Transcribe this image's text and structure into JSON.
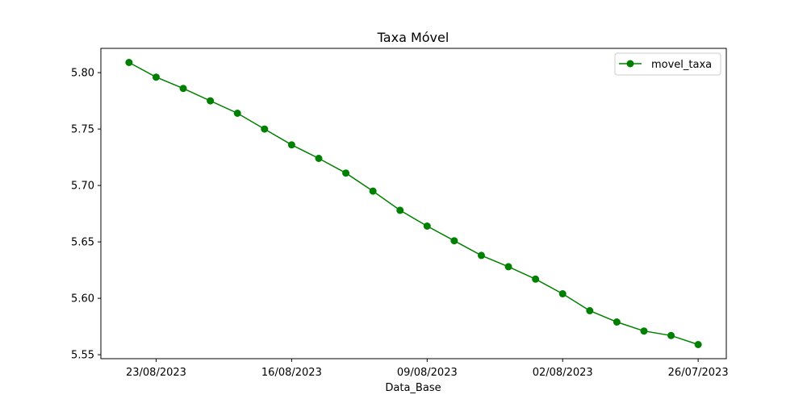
{
  "chart_data": {
    "type": "line",
    "title": "Taxa Móvel",
    "xlabel": "Data_Base",
    "ylabel": "",
    "x": [
      "24/08/2023",
      "23/08/2023",
      "22/08/2023",
      "21/08/2023",
      "18/08/2023",
      "17/08/2023",
      "16/08/2023",
      "15/08/2023",
      "14/08/2023",
      "11/08/2023",
      "10/08/2023",
      "09/08/2023",
      "08/08/2023",
      "07/08/2023",
      "04/08/2023",
      "03/08/2023",
      "02/08/2023",
      "01/08/2023",
      "31/07/2023",
      "28/07/2023",
      "27/07/2023",
      "26/07/2023"
    ],
    "x_axis_order": "descending",
    "xticks": [
      "23/08/2023",
      "16/08/2023",
      "09/08/2023",
      "02/08/2023",
      "26/07/2023"
    ],
    "series": [
      {
        "name": "movel_taxa",
        "color": "#008000",
        "marker": "circle",
        "values": [
          5.809,
          5.796,
          5.786,
          5.775,
          5.764,
          5.75,
          5.736,
          5.724,
          5.711,
          5.695,
          5.678,
          5.664,
          5.651,
          5.638,
          5.628,
          5.617,
          5.604,
          5.589,
          5.579,
          5.571,
          5.567,
          5.559
        ]
      }
    ],
    "yticks": [
      5.55,
      5.6,
      5.65,
      5.7,
      5.75,
      5.8
    ],
    "ylim": [
      5.5465,
      5.8215
    ],
    "grid": false,
    "legend_position": "top-right"
  }
}
